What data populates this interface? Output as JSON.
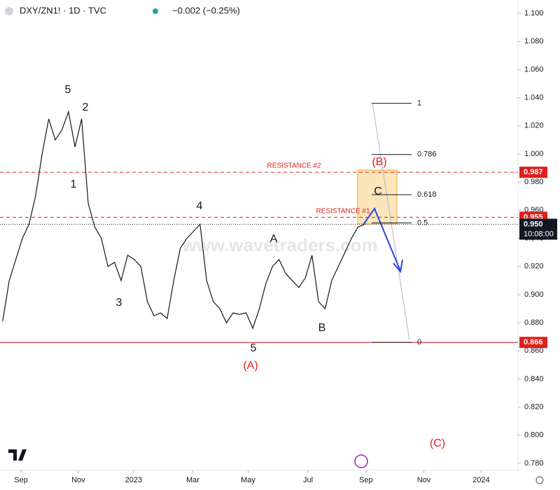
{
  "chart_data": {
    "type": "line",
    "title": "DXY/ZN1! · 1D · TVC",
    "change": "−0.002 (−0.25%)",
    "watermark": "www.wavetraders.com",
    "xlim": [
      -0.4,
      78.3
    ],
    "xticks": [
      {
        "value": 2.8,
        "label": "Sep"
      },
      {
        "value": 11.5,
        "label": "Nov"
      },
      {
        "value": 19.9,
        "label": "2023"
      },
      {
        "value": 28.9,
        "label": "Mar"
      },
      {
        "value": 37.3,
        "label": "May"
      },
      {
        "value": 46.4,
        "label": "Jul"
      },
      {
        "value": 55.2,
        "label": "Sep"
      },
      {
        "value": 64.0,
        "label": "Nov"
      },
      {
        "value": 72.7,
        "label": "2024"
      }
    ],
    "ylim": [
      0.775,
      1.1095
    ],
    "yticks": [
      {
        "value": 1.1,
        "label": "1.100"
      },
      {
        "value": 1.08,
        "label": "1.080"
      },
      {
        "value": 1.06,
        "label": "1.060"
      },
      {
        "value": 1.04,
        "label": "1.040"
      },
      {
        "value": 1.02,
        "label": "1.020"
      },
      {
        "value": 1.0,
        "label": "1.000"
      },
      {
        "value": 0.98,
        "label": "0.980"
      },
      {
        "value": 0.96,
        "label": "0.960"
      },
      {
        "value": 0.94,
        "label": "0.940"
      },
      {
        "value": 0.92,
        "label": "0.920"
      },
      {
        "value": 0.9,
        "label": "0.900"
      },
      {
        "value": 0.88,
        "label": "0.880"
      },
      {
        "value": 0.86,
        "label": "0.860"
      },
      {
        "value": 0.84,
        "label": "0.840"
      },
      {
        "value": 0.82,
        "label": "0.820"
      },
      {
        "value": 0.8,
        "label": "0.800"
      },
      {
        "value": 0.78,
        "label": "0.780"
      }
    ],
    "series": [
      {
        "name": "DXY/ZN1!",
        "color": "#131722",
        "values": [
          0.881,
          0.91,
          0.925,
          0.94,
          0.95,
          0.97,
          1.0,
          1.025,
          1.01,
          1.017,
          1.03,
          1.005,
          1.025,
          0.965,
          0.948,
          0.94,
          0.92,
          0.923,
          0.91,
          0.928,
          0.925,
          0.92,
          0.895,
          0.885,
          0.887,
          0.883,
          0.91,
          0.933,
          0.94,
          0.945,
          0.95,
          0.91,
          0.895,
          0.89,
          0.88,
          0.887,
          0.886,
          0.887,
          0.876,
          0.89,
          0.908,
          0.92,
          0.925,
          0.915,
          0.91,
          0.905,
          0.912,
          0.928,
          0.895,
          0.89,
          0.91,
          0.92,
          0.93,
          0.94,
          0.948,
          0.95
        ]
      }
    ],
    "levels": [
      {
        "value": 0.987,
        "label": "0.987",
        "text": "RESISTANCE #2"
      },
      {
        "value": 0.955,
        "label": "0.955",
        "text": "RESISTANCE #1"
      },
      {
        "value": 0.866,
        "label": "0.866"
      }
    ],
    "last_price": {
      "value": 0.95,
      "label": "0.950",
      "countdown": "10:08:00"
    },
    "fib": {
      "low": 0.866,
      "high": 1.036,
      "levels": [
        1,
        0.786,
        0.618,
        0.5,
        0
      ]
    },
    "annotations": [
      "5",
      "2",
      "1",
      "3",
      "4",
      "5",
      "(A)",
      "A",
      "B",
      "C",
      "(B)",
      "(C)"
    ]
  }
}
